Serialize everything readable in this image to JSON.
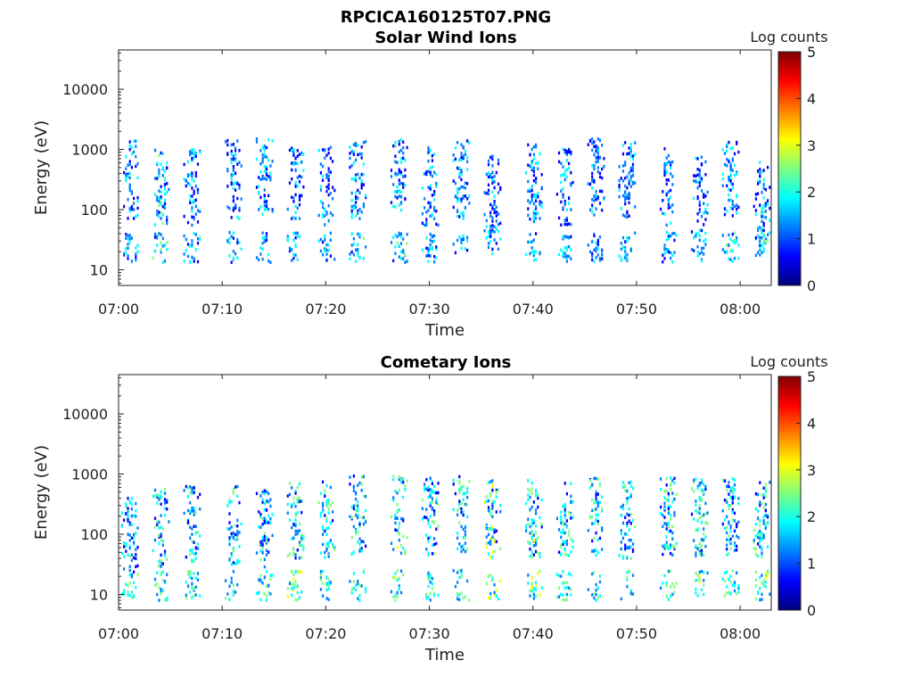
{
  "figure": {
    "title": "RPCICA160125T07.PNG"
  },
  "colors": {
    "colormap": [
      "#00007f",
      "#0000ff",
      "#007fff",
      "#00ffff",
      "#7fff7f",
      "#ffff00",
      "#ff7f00",
      "#ff0000",
      "#7f0000"
    ]
  },
  "chart_data": [
    {
      "type": "heatmap",
      "title": "Solar Wind Ions",
      "xlabel": "Time",
      "ylabel": "Energy (eV)",
      "y_scale": "log",
      "ylim": [
        5.5,
        45000
      ],
      "xlim": [
        "07:00",
        "08:03"
      ],
      "x_ticks": [
        "07:00",
        "07:10",
        "07:20",
        "07:30",
        "07:40",
        "07:50",
        "08:00"
      ],
      "y_ticks": [
        "10",
        "100",
        "1000",
        "10000"
      ],
      "colorbar": {
        "label": "Log counts",
        "range": [
          0,
          5
        ],
        "ticks": [
          "0",
          "1",
          "2",
          "3",
          "4",
          "5"
        ]
      },
      "scans": [
        {
          "t": "07:01",
          "peak": 450,
          "low": 25,
          "level": 1.5
        },
        {
          "t": "07:04",
          "peak": 350,
          "low": 25,
          "level": 1.8
        },
        {
          "t": "07:07",
          "peak": 350,
          "low": 25,
          "level": 1.6
        },
        {
          "t": "07:11",
          "peak": 450,
          "low": 25,
          "level": 1.4
        },
        {
          "t": "07:14",
          "peak": 500,
          "low": 25,
          "level": 1.5
        },
        {
          "t": "07:17",
          "peak": 350,
          "low": 25,
          "level": 1.4
        },
        {
          "t": "07:20",
          "peak": 350,
          "low": 25,
          "level": 1.3
        },
        {
          "t": "07:23",
          "peak": 450,
          "low": 25,
          "level": 1.6
        },
        {
          "t": "07:27",
          "peak": 500,
          "low": 25,
          "level": 1.7
        },
        {
          "t": "07:30",
          "peak": 350,
          "low": 25,
          "level": 1.4
        },
        {
          "t": "07:33",
          "peak": 450,
          "low": 25,
          "level": 1.5
        },
        {
          "t": "07:36",
          "peak": 250,
          "low": 35,
          "level": 1.3
        },
        {
          "t": "07:40",
          "peak": 400,
          "low": 25,
          "level": 1.5
        },
        {
          "t": "07:43",
          "peak": 350,
          "low": 25,
          "level": 1.4
        },
        {
          "t": "07:46",
          "peak": 500,
          "low": 25,
          "level": 1.3
        },
        {
          "t": "07:49",
          "peak": 450,
          "low": 25,
          "level": 1.4
        },
        {
          "t": "07:53",
          "peak": 350,
          "low": 25,
          "level": 1.5
        },
        {
          "t": "07:56",
          "peak": 250,
          "low": 25,
          "level": 1.4
        },
        {
          "t": "07:59",
          "peak": 450,
          "low": 25,
          "level": 1.6
        },
        {
          "t": "08:02",
          "peak": 200,
          "low": 25,
          "level": 1.7
        }
      ]
    },
    {
      "type": "heatmap",
      "title": "Cometary Ions",
      "xlabel": "Time",
      "ylabel": "Energy (eV)",
      "y_scale": "log",
      "ylim": [
        5.5,
        45000
      ],
      "xlim": [
        "07:00",
        "08:03"
      ],
      "x_ticks": [
        "07:00",
        "07:10",
        "07:20",
        "07:30",
        "07:40",
        "07:50",
        "08:00"
      ],
      "y_ticks": [
        "10",
        "100",
        "1000",
        "10000"
      ],
      "colorbar": {
        "label": "Log counts",
        "range": [
          0,
          5
        ],
        "ticks": [
          "0",
          "1",
          "2",
          "3",
          "4",
          "5"
        ]
      },
      "scans": [
        {
          "t": "07:01",
          "peak": 150,
          "low": 15,
          "level": 1.8
        },
        {
          "t": "07:04",
          "peak": 180,
          "low": 15,
          "level": 1.9
        },
        {
          "t": "07:07",
          "peak": 200,
          "low": 15,
          "level": 2.0
        },
        {
          "t": "07:11",
          "peak": 200,
          "low": 15,
          "level": 1.8
        },
        {
          "t": "07:14",
          "peak": 180,
          "low": 15,
          "level": 1.8
        },
        {
          "t": "07:17",
          "peak": 250,
          "low": 15,
          "level": 2.2
        },
        {
          "t": "07:20",
          "peak": 250,
          "low": 15,
          "level": 2.0
        },
        {
          "t": "07:23",
          "peak": 300,
          "low": 15,
          "level": 2.0
        },
        {
          "t": "07:27",
          "peak": 300,
          "low": 15,
          "level": 2.2
        },
        {
          "t": "07:30",
          "peak": 280,
          "low": 15,
          "level": 2.0
        },
        {
          "t": "07:33",
          "peak": 300,
          "low": 15,
          "level": 2.1
        },
        {
          "t": "07:36",
          "peak": 250,
          "low": 15,
          "level": 2.4
        },
        {
          "t": "07:40",
          "peak": 250,
          "low": 15,
          "level": 2.2
        },
        {
          "t": "07:43",
          "peak": 250,
          "low": 15,
          "level": 2.0
        },
        {
          "t": "07:46",
          "peak": 280,
          "low": 15,
          "level": 2.0
        },
        {
          "t": "07:49",
          "peak": 250,
          "low": 15,
          "level": 1.9
        },
        {
          "t": "07:53",
          "peak": 280,
          "low": 15,
          "level": 2.0
        },
        {
          "t": "07:56",
          "peak": 280,
          "low": 15,
          "level": 2.2
        },
        {
          "t": "07:59",
          "peak": 280,
          "low": 15,
          "level": 2.0
        },
        {
          "t": "08:02",
          "peak": 250,
          "low": 15,
          "level": 2.1
        }
      ]
    }
  ]
}
